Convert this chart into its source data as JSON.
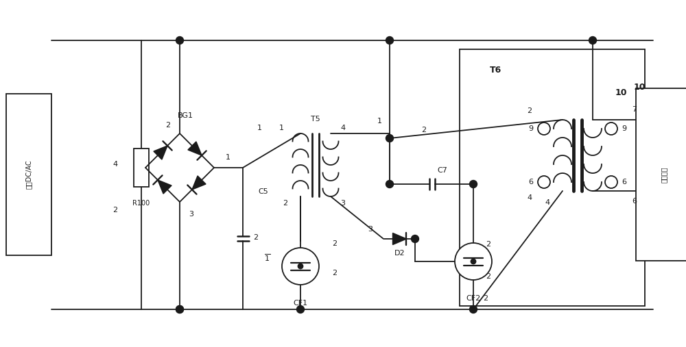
{
  "bg": "#ffffff",
  "lc": "#1a1a1a",
  "lw": 1.3,
  "fw": 10.0,
  "fh": 5.07,
  "dpi": 100,
  "labels": {
    "dcac": "来自DC/AC",
    "BG1": "BG1",
    "R100": "R100",
    "C5": "C5",
    "T5": "T5",
    "CF1": "CF1",
    "D2": "D2",
    "CF2": "CF2",
    "C7": "C7",
    "T6": "T6",
    "lamp": "金卙就灯"
  }
}
